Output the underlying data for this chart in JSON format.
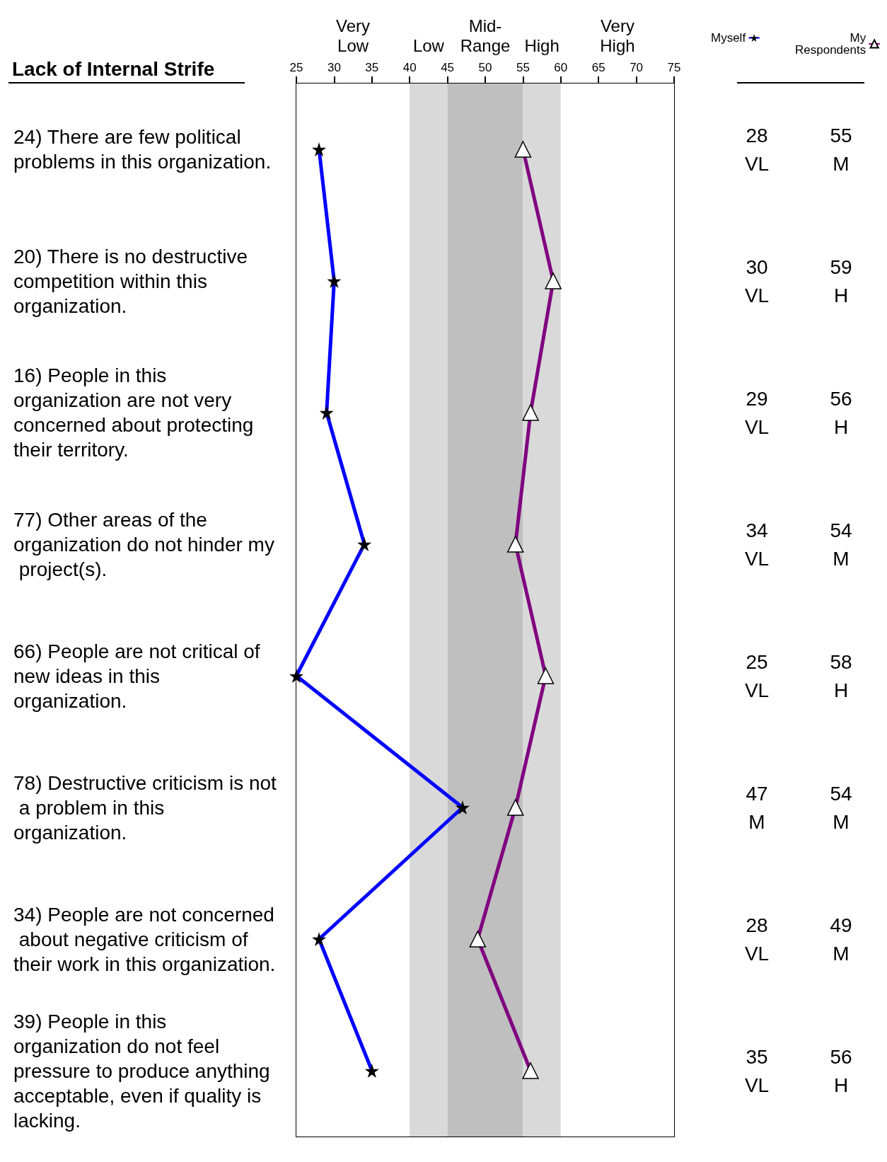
{
  "chart_data": {
    "type": "line",
    "orientation": "horizontal",
    "title": "Lack of Internal Strife",
    "categories": [
      "24) There are few political problems in this organization.",
      "20) There is no destructive competition within this organization.",
      "16) People in this organization are not very concerned about protecting their territory.",
      "77) Other areas of the organization do not hinder my project(s).",
      "66) People are not critical of new ideas in this organization.",
      "78) Destructive criticism is not a problem in this organization.",
      "34) People are not concerned about negative criticism of their work in this organization.",
      "39) People in this organization do not feel pressure to produce anything acceptable, even if quality is lacking."
    ],
    "series": [
      {
        "name": "Myself",
        "color": "#0000ff",
        "marker": "star",
        "values": [
          28,
          30,
          29,
          34,
          25,
          47,
          28,
          35
        ],
        "value_labels": [
          "28\nVL",
          "30\nVL",
          "29\nVL",
          "34\nVL",
          "25\nVL",
          "47\nM",
          "28\nVL",
          "35\nVL"
        ]
      },
      {
        "name": "My Respondents",
        "color": "#800080",
        "marker": "triangle",
        "values": [
          55,
          59,
          56,
          54,
          58,
          54,
          49,
          56
        ],
        "value_labels": [
          "55\nM",
          "59\nH",
          "56\nH",
          "54\nM",
          "58\nH",
          "54\nM",
          "49\nM",
          "56\nH"
        ]
      }
    ],
    "xlim": [
      25,
      75
    ],
    "xticks": [
      25,
      30,
      35,
      40,
      45,
      50,
      55,
      60,
      65,
      70,
      75
    ],
    "bands": [
      {
        "axis": "x",
        "from": 25,
        "to": 40,
        "label": "Very Low",
        "color": "#ffffff"
      },
      {
        "axis": "x",
        "from": 40,
        "to": 45,
        "label": "Low",
        "color": "#d9d9d9"
      },
      {
        "axis": "x",
        "from": 45,
        "to": 55,
        "label": "Mid-Range",
        "color": "#bfbfbf"
      },
      {
        "axis": "x",
        "from": 55,
        "to": 60,
        "label": "High",
        "color": "#d9d9d9"
      },
      {
        "axis": "x",
        "from": 60,
        "to": 75,
        "label": "Very High",
        "color": "#ffffff"
      }
    ],
    "legend": "top right",
    "grid": false
  }
}
